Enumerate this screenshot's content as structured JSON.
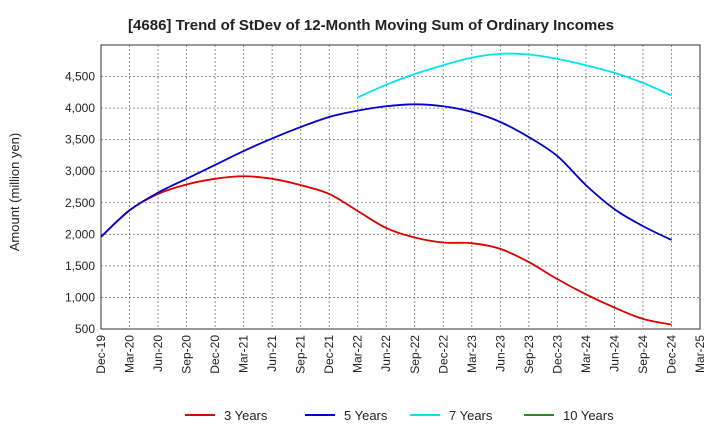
{
  "chart_data": {
    "type": "line",
    "title": "[4686]  Trend of StDev of 12-Month Moving Sum of Ordinary Incomes",
    "ylabel": "Amount (million yen)",
    "xlabel": "",
    "ylim": [
      500,
      5000
    ],
    "yticks": [
      500,
      1000,
      1500,
      2000,
      2500,
      3000,
      3500,
      4000,
      4500
    ],
    "ytick_labels": [
      "500",
      "1,000",
      "1,500",
      "2,000",
      "2,500",
      "3,000",
      "3,500",
      "4,000",
      "4,500"
    ],
    "x_start": "2019-12",
    "xtick_labels": [
      "Dec-19",
      "Mar-20",
      "Jun-20",
      "Sep-20",
      "Dec-20",
      "Mar-21",
      "Jun-21",
      "Sep-21",
      "Dec-21",
      "Mar-22",
      "Jun-22",
      "Sep-22",
      "Dec-22",
      "Mar-23",
      "Jun-23",
      "Sep-23",
      "Dec-23",
      "Mar-24",
      "Jun-24",
      "Sep-24",
      "Dec-24",
      "Mar-25"
    ],
    "grid": true,
    "legend_position": "bottom",
    "series": [
      {
        "name": "3 Years",
        "color": "#dd0000",
        "x": [
          "Dec-19",
          "Mar-20",
          "Jun-20",
          "Sep-20",
          "Dec-20",
          "Mar-21",
          "Jun-21",
          "Sep-21",
          "Dec-21",
          "Mar-22",
          "Jun-22",
          "Sep-22",
          "Dec-22",
          "Mar-23",
          "Jun-23",
          "Sep-23",
          "Dec-23",
          "Mar-24",
          "Jun-24",
          "Sep-24",
          "Dec-24"
        ],
        "values": [
          1960,
          2380,
          2640,
          2790,
          2880,
          2920,
          2880,
          2780,
          2640,
          2370,
          2100,
          1950,
          1870,
          1860,
          1770,
          1560,
          1290,
          1050,
          840,
          660,
          570
        ]
      },
      {
        "name": "5 Years",
        "color": "#0000cc",
        "x": [
          "Dec-19",
          "Mar-20",
          "Jun-20",
          "Sep-20",
          "Dec-20",
          "Mar-21",
          "Jun-21",
          "Sep-21",
          "Dec-21",
          "Mar-22",
          "Jun-22",
          "Sep-22",
          "Dec-22",
          "Mar-23",
          "Jun-23",
          "Sep-23",
          "Dec-23",
          "Mar-24",
          "Jun-24",
          "Sep-24",
          "Dec-24"
        ],
        "values": [
          1960,
          2380,
          2660,
          2880,
          3100,
          3320,
          3520,
          3700,
          3860,
          3960,
          4030,
          4060,
          4030,
          3940,
          3780,
          3540,
          3240,
          2780,
          2400,
          2130,
          1910
        ]
      },
      {
        "name": "7 Years",
        "color": "#00e5ee",
        "x": [
          "Mar-22",
          "Jun-22",
          "Sep-22",
          "Dec-22",
          "Mar-23",
          "Jun-23",
          "Sep-23",
          "Dec-23",
          "Mar-24",
          "Jun-24",
          "Sep-24",
          "Dec-24"
        ],
        "values": [
          4170,
          4370,
          4540,
          4680,
          4800,
          4860,
          4850,
          4780,
          4680,
          4560,
          4400,
          4200
        ]
      },
      {
        "name": "10 Years",
        "color": "#228b22",
        "x": [],
        "values": []
      }
    ]
  }
}
